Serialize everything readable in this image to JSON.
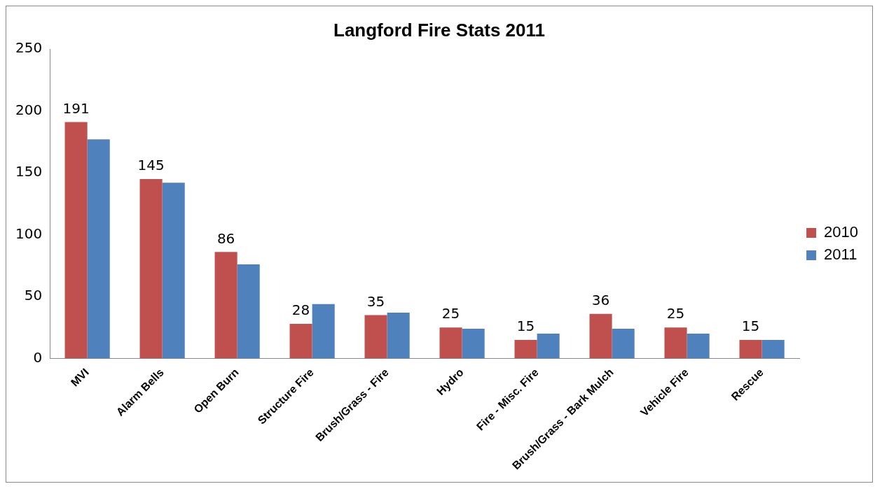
{
  "chart_data": {
    "type": "bar",
    "title": "Langford Fire Stats 2011",
    "categories": [
      "MVI",
      "Alarm Bells",
      "Open Burn",
      "Structure Fire",
      "Brush/Grass - Fire",
      "Hydro",
      "Fire - Misc. Fire",
      "Brush/Grass - Bark Mulch",
      "Vehicle Fire",
      "Rescue"
    ],
    "series": [
      {
        "name": "2010",
        "color": "#c0504d",
        "values": [
          191,
          145,
          86,
          28,
          35,
          25,
          15,
          36,
          25,
          15
        ],
        "value_labels": [
          "191",
          "145",
          "86",
          "28",
          "35",
          "25",
          "15",
          "36",
          "25",
          "15"
        ]
      },
      {
        "name": "2011",
        "color": "#4f81bd",
        "values": [
          177,
          142,
          76,
          44,
          37,
          24,
          20,
          24,
          20,
          15
        ]
      }
    ],
    "ylim": [
      0,
      250
    ],
    "yticks": [
      0,
      50,
      100,
      150,
      200,
      250
    ],
    "grid": false,
    "legend": "right"
  }
}
